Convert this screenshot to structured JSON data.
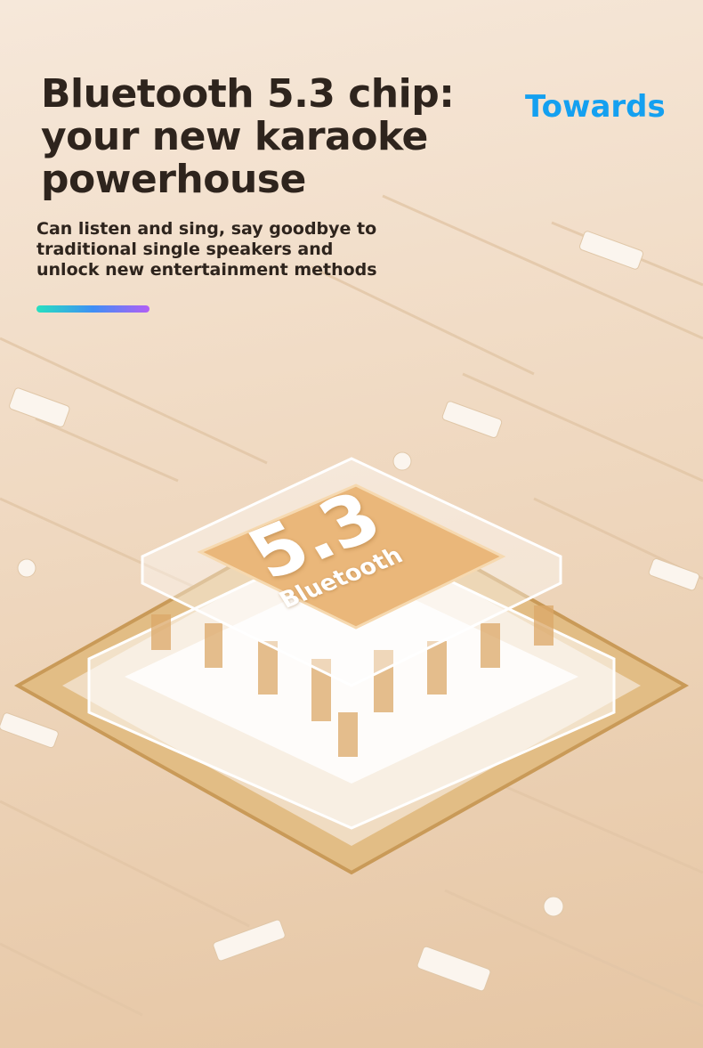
{
  "headline": {
    "line1": "Bluetooth 5.3 chip:",
    "line2": "your new karaoke",
    "line3": "powerhouse"
  },
  "tag": "Towards",
  "subtitle": {
    "line1": "Can listen and sing, say goodbye to",
    "line2": "traditional single speakers and",
    "line3": "unlock new entertainment methods"
  },
  "chip": {
    "version": "5.3",
    "label": "Bluetooth"
  },
  "colors": {
    "headline": "#2e241d",
    "tag": "#14a0f0",
    "accent_gradient": [
      "#27e0c0",
      "#3f8ff5",
      "#b25ef5"
    ]
  }
}
